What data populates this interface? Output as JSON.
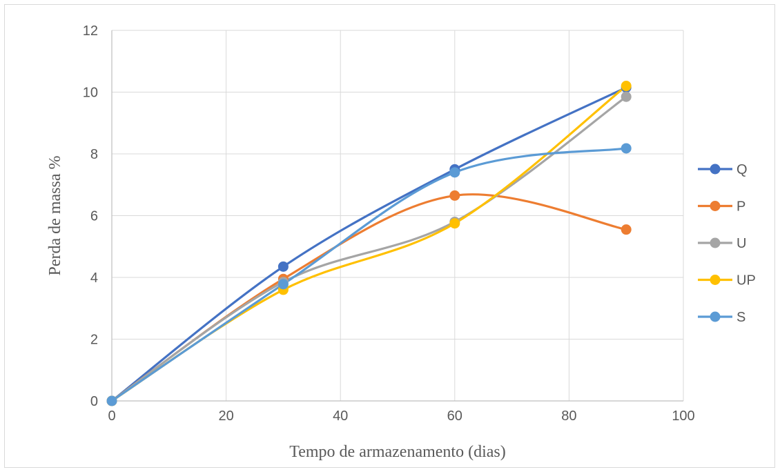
{
  "chart_data": {
    "type": "line",
    "title": "",
    "xlabel": "Tempo de armazenamento (dias)",
    "ylabel": "Perda de massa %",
    "xlim": [
      0,
      100
    ],
    "ylim": [
      0,
      12
    ],
    "xticks": [
      0,
      20,
      40,
      60,
      80,
      100
    ],
    "yticks": [
      0,
      2,
      4,
      6,
      8,
      10,
      12
    ],
    "grid": true,
    "smooth": true,
    "legend_position": "right",
    "x": [
      0,
      30,
      60,
      90
    ],
    "series": [
      {
        "name": "Q",
        "color": "#4472c4",
        "values": [
          0,
          4.35,
          7.5,
          10.15
        ]
      },
      {
        "name": "P",
        "color": "#ed7d31",
        "values": [
          0,
          3.95,
          6.65,
          5.55
        ]
      },
      {
        "name": "U",
        "color": "#a5a5a5",
        "values": [
          0,
          3.85,
          5.8,
          9.85
        ]
      },
      {
        "name": "UP",
        "color": "#ffc000",
        "values": [
          0,
          3.6,
          5.75,
          10.2
        ]
      },
      {
        "name": "S",
        "color": "#5b9bd5",
        "values": [
          0,
          3.78,
          7.4,
          8.18
        ]
      }
    ]
  }
}
